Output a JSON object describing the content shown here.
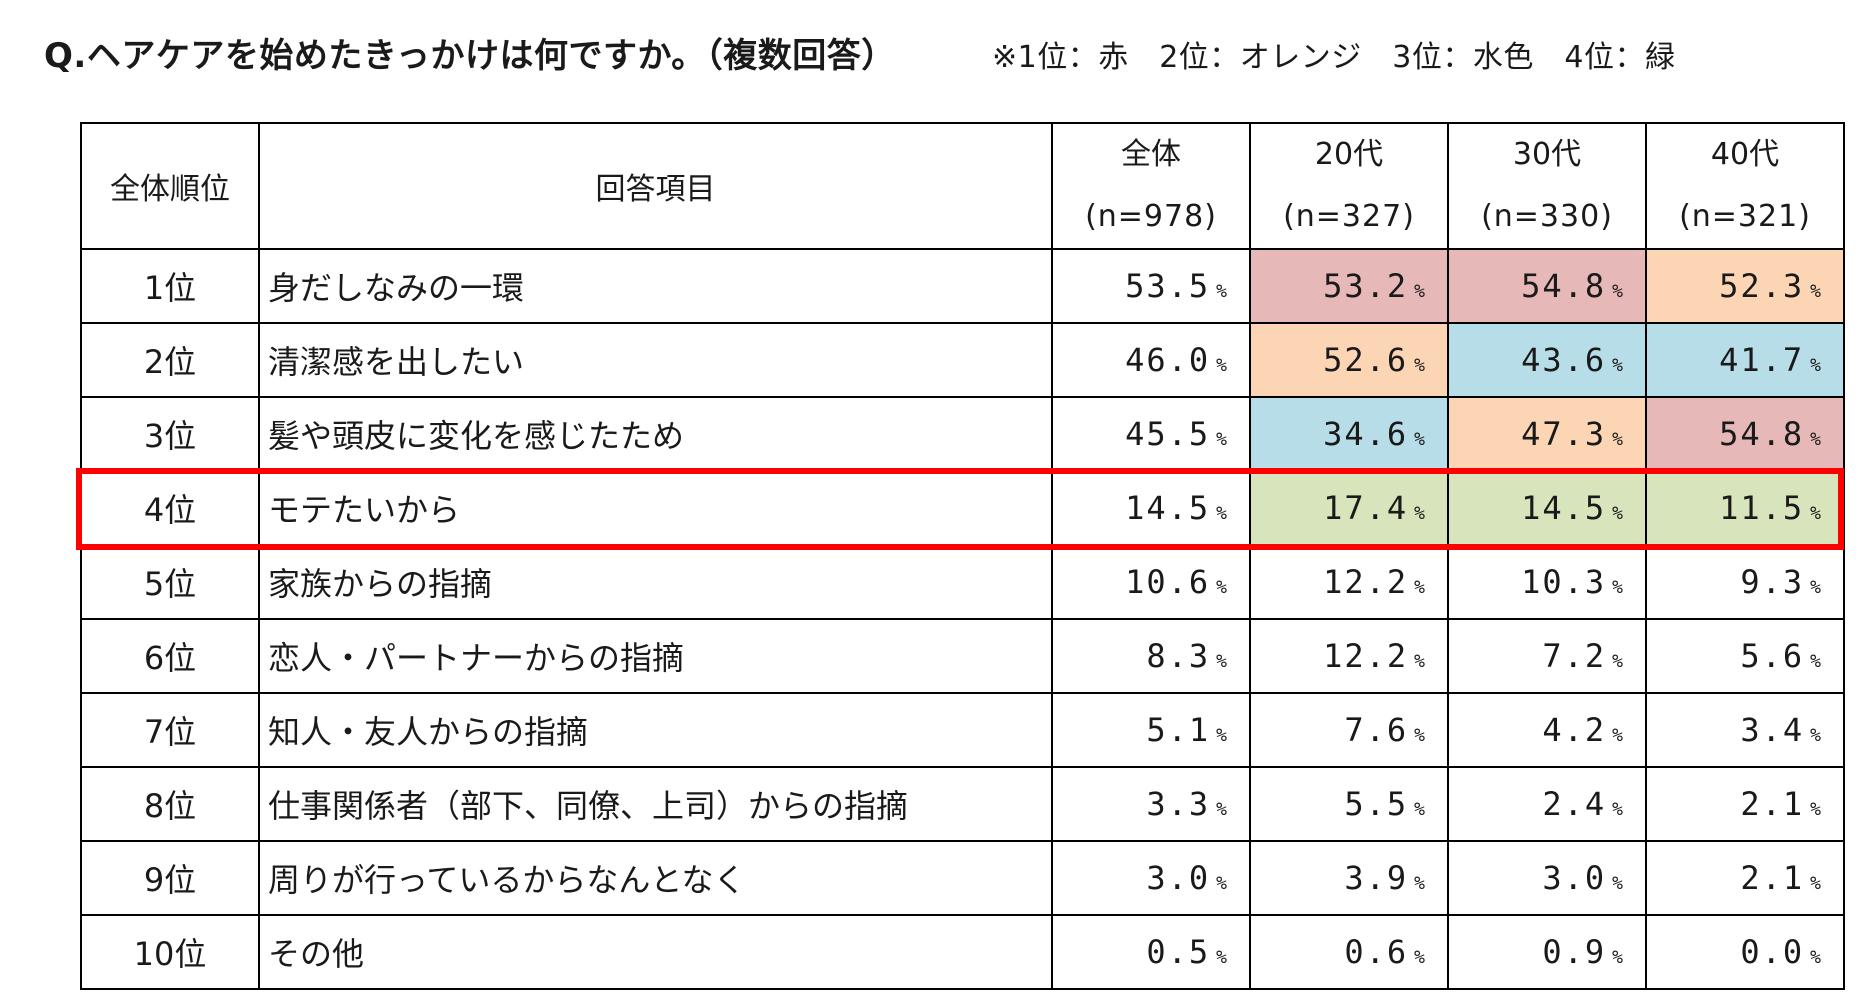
{
  "header": {
    "question": "Q.ヘアケアを始めたきっかけは何ですか。（複数回答）",
    "legend_note": "※1位：赤　2位：オレンジ　3位：水色　4位：緑"
  },
  "colors": {
    "rank1_red": "#e6b8b7",
    "rank2_orange": "#fcd5b4",
    "rank3_lightblue": "#b7dde8",
    "rank4_green": "#d8e4bc",
    "highlight_border": "#ff0000"
  },
  "chart_data": {
    "type": "table",
    "title": "Q.ヘアケアを始めたきっかけは何ですか。（複数回答）",
    "unit": "%",
    "columns": [
      {
        "label": "全体順位"
      },
      {
        "label": "回答項目"
      },
      {
        "label": "全体",
        "n": "(n=978)"
      },
      {
        "label": "20代",
        "n": "(n=327)"
      },
      {
        "label": "30代",
        "n": "(n=330)"
      },
      {
        "label": "40代",
        "n": "(n=321)"
      }
    ],
    "rows": [
      {
        "rank": "1位",
        "item": "身だしなみの一環",
        "values": [
          "53.5",
          "53.2",
          "54.8",
          "52.3"
        ],
        "colors": [
          "",
          "#e6b8b7",
          "#e6b8b7",
          "#fcd5b4"
        ]
      },
      {
        "rank": "2位",
        "item": "清潔感を出したい",
        "values": [
          "46.0",
          "52.6",
          "43.6",
          "41.7"
        ],
        "colors": [
          "",
          "#fcd5b4",
          "#b7dde8",
          "#b7dde8"
        ]
      },
      {
        "rank": "3位",
        "item": "髪や頭皮に変化を感じたため",
        "values": [
          "45.5",
          "34.6",
          "47.3",
          "54.8"
        ],
        "colors": [
          "",
          "#b7dde8",
          "#fcd5b4",
          "#e6b8b7"
        ]
      },
      {
        "rank": "4位",
        "item": "モテたいから",
        "values": [
          "14.5",
          "17.4",
          "14.5",
          "11.5"
        ],
        "colors": [
          "",
          "#d8e4bc",
          "#d8e4bc",
          "#d8e4bc"
        ],
        "highlighted": true
      },
      {
        "rank": "5位",
        "item": "家族からの指摘",
        "values": [
          "10.6",
          "12.2",
          "10.3",
          "9.3"
        ],
        "colors": [
          "",
          "",
          "",
          ""
        ]
      },
      {
        "rank": "6位",
        "item": "恋人・パートナーからの指摘",
        "values": [
          "8.3",
          "12.2",
          "7.2",
          "5.6"
        ],
        "colors": [
          "",
          "",
          "",
          ""
        ]
      },
      {
        "rank": "7位",
        "item": "知人・友人からの指摘",
        "values": [
          "5.1",
          "7.6",
          "4.2",
          "3.4"
        ],
        "colors": [
          "",
          "",
          "",
          ""
        ]
      },
      {
        "rank": "8位",
        "item": "仕事関係者（部下、同僚、上司）からの指摘",
        "values": [
          "3.3",
          "5.5",
          "2.4",
          "2.1"
        ],
        "colors": [
          "",
          "",
          "",
          ""
        ]
      },
      {
        "rank": "9位",
        "item": "周りが行っているからなんとなく",
        "values": [
          "3.0",
          "3.9",
          "3.0",
          "2.1"
        ],
        "colors": [
          "",
          "",
          "",
          ""
        ]
      },
      {
        "rank": "10位",
        "item": "その他",
        "values": [
          "0.5",
          "0.6",
          "0.9",
          "0.0"
        ],
        "colors": [
          "",
          "",
          "",
          ""
        ]
      }
    ]
  }
}
